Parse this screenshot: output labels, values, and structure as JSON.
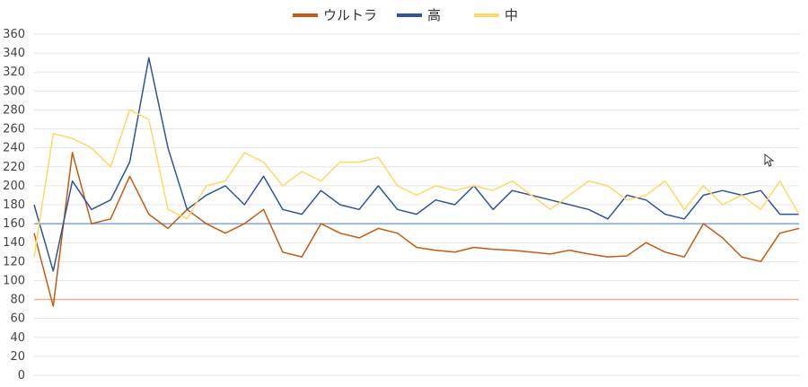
{
  "chart_data": {
    "type": "line",
    "title": "",
    "xlabel": "",
    "ylabel": "",
    "ylim": [
      0,
      360
    ],
    "yticks": [
      0,
      20,
      40,
      60,
      80,
      100,
      120,
      140,
      160,
      180,
      200,
      220,
      240,
      260,
      280,
      300,
      320,
      340,
      360
    ],
    "grid": true,
    "legend_position": "top-center",
    "x": [
      0,
      20,
      40,
      60,
      80,
      100,
      120,
      140,
      160,
      180,
      200,
      220,
      240,
      260,
      280,
      300,
      320,
      340,
      360,
      380,
      400,
      420,
      440,
      460,
      480,
      500,
      520,
      540,
      560,
      580,
      600,
      620,
      640,
      660,
      680,
      700,
      720,
      740,
      760,
      780,
      800
    ],
    "reference_lines": [
      {
        "series": "ウルトラ",
        "value": 80,
        "color": "#f2b08c"
      },
      {
        "series": "高",
        "value": 160,
        "color": "#7fa7d6"
      }
    ],
    "series": [
      {
        "name": "ウルトラ",
        "color": "#c55a11",
        "values": [
          150,
          73,
          235,
          160,
          165,
          210,
          170,
          155,
          175,
          160,
          150,
          160,
          175,
          130,
          125,
          160,
          150,
          145,
          155,
          150,
          135,
          132,
          130,
          135,
          133,
          132,
          130,
          128,
          132,
          128,
          125,
          126,
          140,
          130,
          125,
          160,
          145,
          125,
          120,
          150,
          155
        ]
      },
      {
        "name": "高",
        "color": "#2f5597",
        "values": [
          180,
          110,
          205,
          175,
          185,
          225,
          335,
          240,
          175,
          190,
          200,
          180,
          210,
          175,
          170,
          195,
          180,
          175,
          200,
          175,
          170,
          185,
          180,
          200,
          175,
          195,
          190,
          185,
          180,
          175,
          165,
          190,
          185,
          170,
          165,
          190,
          195,
          190,
          195,
          170,
          170
        ]
      },
      {
        "name": "中",
        "color": "#ffd966",
        "values": [
          125,
          255,
          250,
          240,
          220,
          280,
          270,
          175,
          165,
          200,
          205,
          235,
          225,
          200,
          215,
          205,
          225,
          225,
          230,
          200,
          190,
          200,
          195,
          200,
          195,
          205,
          190,
          175,
          190,
          205,
          200,
          185,
          190,
          205,
          175,
          200,
          180,
          190,
          175,
          205,
          170
        ]
      }
    ]
  }
}
